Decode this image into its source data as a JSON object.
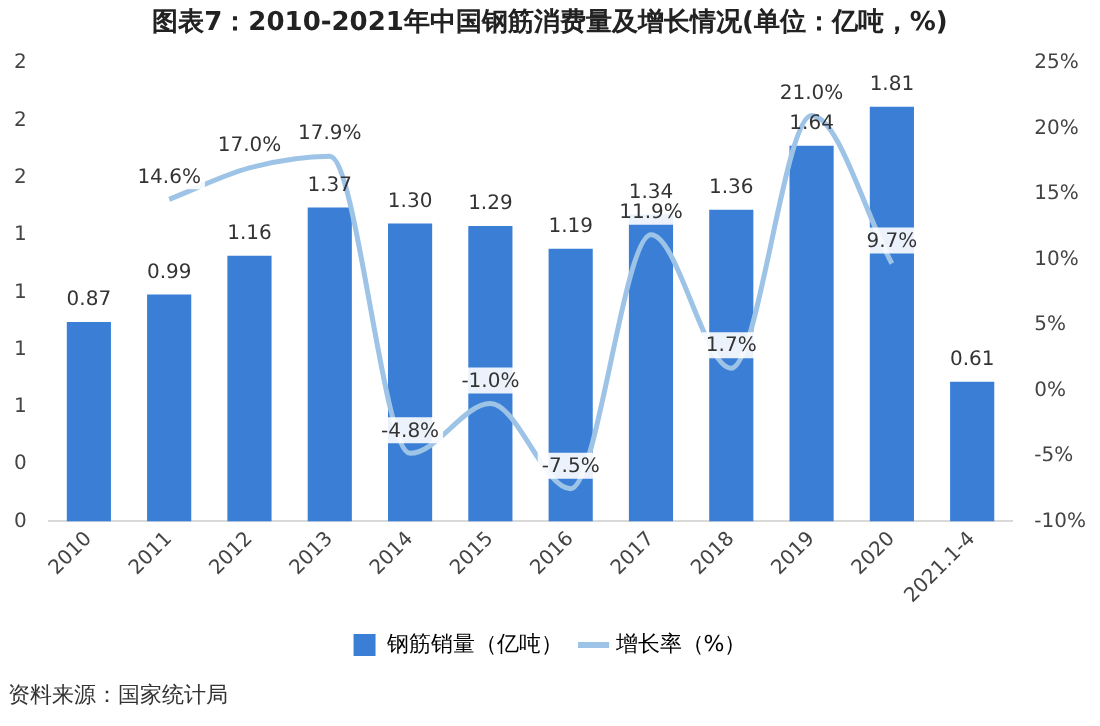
{
  "chart_data": {
    "type": "bar",
    "title": "图表7：2010-2021年中国钢筋消费量及增长情况(单位：亿吨，%)",
    "categories": [
      "2010",
      "2011",
      "2012",
      "2013",
      "2014",
      "2015",
      "2016",
      "2017",
      "2018",
      "2019",
      "2020",
      "2021.1-4"
    ],
    "series": [
      {
        "name": "钢筋销量（亿吨）",
        "color": "#3a7fd5",
        "values": [
          0.87,
          0.99,
          1.16,
          1.37,
          1.3,
          1.29,
          1.19,
          1.34,
          1.36,
          1.64,
          1.81,
          0.61
        ],
        "value_labels": [
          "0.87",
          "0.99",
          "1.16",
          "1.37",
          "1.30",
          "1.29",
          "1.19",
          "1.34",
          "1.36",
          "1.64",
          "1.81",
          "0.61"
        ]
      },
      {
        "name": "增长率（%）",
        "type": "line",
        "axis": "y2",
        "color": "#9dc3e6",
        "values": [
          null,
          14.6,
          17.0,
          17.9,
          -4.8,
          -1.0,
          -7.5,
          11.9,
          1.7,
          21.0,
          9.7,
          null
        ],
        "value_labels": [
          null,
          "14.6%",
          "17.0%",
          "17.9%",
          "-4.8%",
          "-1.0%",
          "-7.5%",
          "11.9%",
          "1.7%",
          "21.0%",
          "9.7%",
          null
        ]
      }
    ],
    "ylim": [
      0,
      2
    ],
    "yticks": [
      0,
      {
        "value": 0.25,
        "label": "0"
      },
      {
        "value": 0.5,
        "label": "1"
      },
      {
        "value": 0.75,
        "label": "1"
      },
      1,
      {
        "value": 1.25,
        "label": "1"
      },
      {
        "value": 1.5,
        "label": "2"
      },
      {
        "value": 1.75,
        "label": "2"
      },
      2
    ],
    "y2lim": [
      -10,
      25
    ],
    "y2ticks": [
      {
        "value": -10,
        "label": "-10%"
      },
      {
        "value": -5,
        "label": "-5%"
      },
      {
        "value": 0,
        "label": "0%"
      },
      {
        "value": 5,
        "label": "5%"
      },
      {
        "value": 10,
        "label": "10%"
      },
      {
        "value": 15,
        "label": "15%"
      },
      {
        "value": 20,
        "label": "20%"
      },
      {
        "value": 25,
        "label": "25%"
      }
    ],
    "grid": false,
    "legend": "bottom",
    "marker": "none",
    "annotations": [
      "资料来源：国家统计局"
    ]
  }
}
